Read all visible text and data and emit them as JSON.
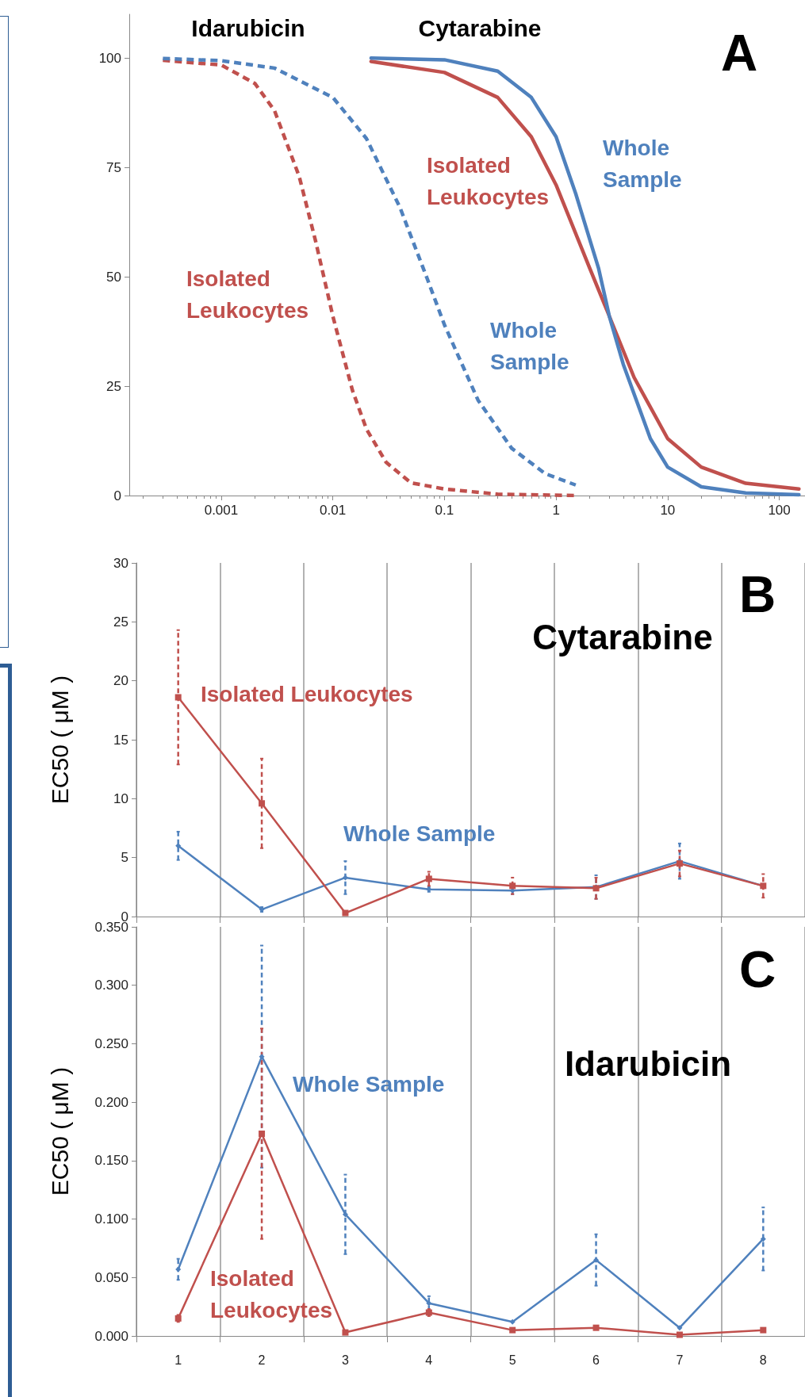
{
  "chart_data": [
    {
      "type": "line",
      "log": "x",
      "xlim": [
        0.00015,
        170
      ],
      "xticks": [
        0.001,
        0.01,
        0.1,
        1,
        10,
        100
      ],
      "ylim": [
        0,
        110
      ],
      "yticks": [
        0,
        25,
        50,
        75,
        100
      ],
      "grid": false,
      "annotations": [
        "Idarubicin",
        "Cytarabine",
        "A"
      ],
      "series": [
        {
          "name": "Isolated Leukocytes",
          "color": "#c0504d",
          "line_style": "dashed",
          "x": [
            0.0003,
            0.001,
            0.002,
            0.003,
            0.005,
            0.007,
            0.01,
            0.015,
            0.02,
            0.03,
            0.05,
            0.1,
            0.3,
            1.5
          ],
          "values": [
            99.5,
            98.4,
            94.2,
            88,
            72.9,
            58.2,
            41,
            24,
            15.2,
            7.6,
            2.9,
            1.5,
            0.3,
            0
          ]
        },
        {
          "name": "Whole Sample",
          "color": "#4f81bd",
          "line_style": "dashed",
          "x": [
            0.0003,
            0.001,
            0.003,
            0.01,
            0.02,
            0.04,
            0.07,
            0.1,
            0.2,
            0.4,
            0.8,
            1.5
          ],
          "values": [
            99.9,
            99.4,
            97.7,
            91,
            81.6,
            65.8,
            49.6,
            39,
            21.8,
            10.8,
            5,
            2.4
          ]
        },
        {
          "name": "Isolated Leukocytes",
          "color": "#c0504d",
          "line_style": "solid",
          "x": [
            0.022,
            0.1,
            0.3,
            0.6,
            1,
            2,
            3,
            5,
            10,
            20,
            50,
            150
          ],
          "values": [
            99.2,
            96.7,
            91,
            82,
            71,
            52,
            41,
            27,
            13,
            6.5,
            2.8,
            1.5
          ]
        },
        {
          "name": "Whole Sample",
          "color": "#4f81bd",
          "line_style": "solid",
          "x": [
            0.022,
            0.1,
            0.3,
            0.6,
            1,
            1.5,
            2.4,
            3,
            4,
            7,
            10,
            20,
            50,
            150
          ],
          "values": [
            100,
            99.6,
            97,
            91,
            82,
            69,
            52,
            41,
            30,
            13,
            6.5,
            2,
            0.6,
            0.2
          ]
        }
      ]
    },
    {
      "type": "line",
      "categories": [
        "1",
        "2",
        "3",
        "4",
        "5",
        "6",
        "7",
        "8"
      ],
      "ylim": [
        0,
        30
      ],
      "yticks": [
        0,
        5,
        10,
        15,
        20,
        25,
        30
      ],
      "grid": "x",
      "tick_labels": "y",
      "ylabel": "EC50 ( μM )",
      "annotations": [
        "B",
        "Cytarabine"
      ],
      "series": [
        {
          "name": "Whole Sample",
          "color": "#4f81bd",
          "marker": "diamond",
          "values": [
            6.0,
            0.6,
            3.3,
            2.3,
            2.2,
            2.5,
            4.7,
            2.6
          ],
          "errors": [
            1.2,
            0.2,
            1.4,
            0.2,
            0.3,
            1.0,
            1.5,
            null
          ]
        },
        {
          "name": "Isolated Leukocytes",
          "color": "#c0504d",
          "marker": "square",
          "values": [
            18.6,
            9.6,
            0.3,
            3.2,
            2.6,
            2.4,
            4.5,
            2.6
          ],
          "errors": [
            5.7,
            3.8,
            null,
            0.6,
            0.7,
            0.9,
            1.1,
            1.0
          ]
        }
      ]
    },
    {
      "type": "line",
      "categories": [
        "1",
        "2",
        "3",
        "4",
        "5",
        "6",
        "7",
        "8"
      ],
      "ylim": [
        0,
        0.35
      ],
      "yticks": [
        {
          "value": 0,
          "label": "0.000"
        },
        {
          "value": 0.05,
          "label": "0.050"
        },
        {
          "value": 0.1,
          "label": "0.100"
        },
        {
          "value": 0.15,
          "label": "0.150"
        },
        {
          "value": 0.2,
          "label": "0.200"
        },
        {
          "value": 0.25,
          "label": "0.250"
        },
        {
          "value": 0.3,
          "label": "0.300"
        },
        {
          "value": 0.35,
          "label": "0.350"
        }
      ],
      "grid": "x",
      "ylabel": "EC50 ( μM )",
      "annotations": [
        "C",
        "Idarubicin"
      ],
      "series": [
        {
          "name": "Whole Sample",
          "color": "#4f81bd",
          "marker": "diamond",
          "values": [
            0.057,
            0.239,
            0.104,
            0.028,
            0.012,
            0.065,
            0.007,
            0.083
          ],
          "errors": [
            0.009,
            0.095,
            0.034,
            0.006,
            null,
            0.022,
            null,
            0.027
          ]
        },
        {
          "name": "Isolated Leukocytes",
          "color": "#c0504d",
          "marker": "square",
          "values": [
            0.015,
            0.173,
            0.003,
            0.02,
            0.005,
            0.007,
            0.001,
            0.005
          ],
          "errors": [
            0.003,
            0.09,
            null,
            0.003,
            null,
            null,
            null,
            null
          ]
        }
      ]
    }
  ]
}
